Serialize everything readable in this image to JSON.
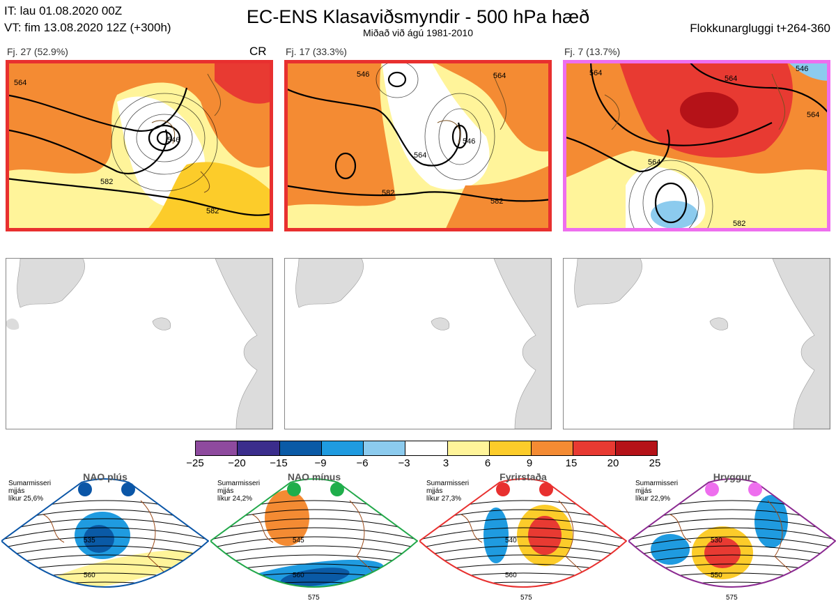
{
  "header": {
    "it_line": "IT: lau 01.08.2020 00Z",
    "vt_line": "VT: fim 13.08.2020 12Z  (+300h)",
    "title": "EC-ENS Klasaviðsmyndir - 500 hPa hæð",
    "subtitle": "Miðað við ágú 1981-2010",
    "window": "Flokkunargluggi t+264-360"
  },
  "clusters": [
    {
      "label": "Fj. 27 (52.9%)",
      "tag": "CR",
      "frame_color": "#e8302f",
      "contours": [
        "564",
        "546",
        "582",
        "582"
      ]
    },
    {
      "label": "Fj. 17 (33.3%)",
      "tag": "",
      "frame_color": "#e8302f",
      "contours": [
        "546",
        "564",
        "546",
        "564",
        "582",
        "582"
      ]
    },
    {
      "label": "Fj. 7 (13.7%)",
      "tag": "",
      "frame_color": "#ee6eee",
      "contours": [
        "564",
        "546",
        "564",
        "564",
        "564",
        "582"
      ]
    }
  ],
  "colorbar": {
    "ticks": [
      "−25",
      "−20",
      "−15",
      "−9",
      "−6",
      "−3",
      "3",
      "6",
      "9",
      "15",
      "20",
      "25"
    ],
    "colors": [
      "#8e4a9e",
      "#3b2d8c",
      "#0a5aa6",
      "#1f9be0",
      "#8ccbee",
      "#ffffff",
      "#fff49a",
      "#fccc2a",
      "#f48b33",
      "#e83a32",
      "#b51218"
    ]
  },
  "regimes": [
    {
      "title": "NAO plús",
      "note": "Sumarmisseri\nmjjás\nlíkur 25,6%",
      "color": "#0b56a7",
      "frame": "#0b56a7",
      "labels": [
        "535",
        "560"
      ]
    },
    {
      "title": "NAO mínus",
      "note": "Sumarmisseri\nmjjás\nlíkur 24,2%",
      "color": "#1fae4b",
      "frame": "#22a84a",
      "labels": [
        "545",
        "560",
        "575"
      ]
    },
    {
      "title": "Fyrirstaða",
      "note": "Sumarmisseri\nmjjás\nlíkur 27,3%",
      "color": "#e8302f",
      "frame": "#e8302f",
      "labels": [
        "540",
        "560",
        "575"
      ]
    },
    {
      "title": "Hryggur",
      "note": "Sumarmisseri\nmjjás\nlíkur 22,9%",
      "color": "#ee6eee",
      "frame": "#8b2a91",
      "labels": [
        "530",
        "550",
        "575"
      ]
    }
  ]
}
